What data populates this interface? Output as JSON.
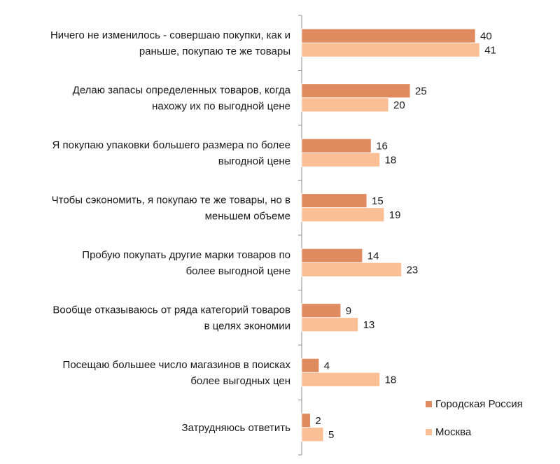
{
  "chart_data": {
    "type": "bar",
    "orientation": "horizontal",
    "categories": [
      [
        "Ничего не изменилось - совершаю покупки, как и",
        "раньше, покупаю те же товары"
      ],
      [
        "Делаю запасы определенных товаров, когда",
        "нахожу их по выгодной цене"
      ],
      [
        "Я покупаю упаковки большего размера по более",
        "выгодной цене"
      ],
      [
        "Чтобы сэкономить, я покупаю те же товары, но в",
        "меньшем объеме"
      ],
      [
        "Пробую покупать другие марки товаров по",
        "более выгодной цене"
      ],
      [
        "Вообще отказываюсь от ряда категорий товаров",
        "в целях экономии"
      ],
      [
        "Посещаю большее число магазинов в поисках",
        "более выгодных цен"
      ],
      [
        "Затрудняюсь ответить"
      ]
    ],
    "series": [
      {
        "name": "Городская Россия",
        "color": "#e08a60",
        "values": [
          40,
          25,
          16,
          15,
          14,
          9,
          4,
          2
        ]
      },
      {
        "name": "Москва",
        "color": "#fbbf96",
        "values": [
          41,
          20,
          18,
          19,
          23,
          13,
          18,
          5
        ]
      }
    ],
    "xlim": [
      0,
      50
    ],
    "legend_position": "bottom-right",
    "grid": false
  }
}
